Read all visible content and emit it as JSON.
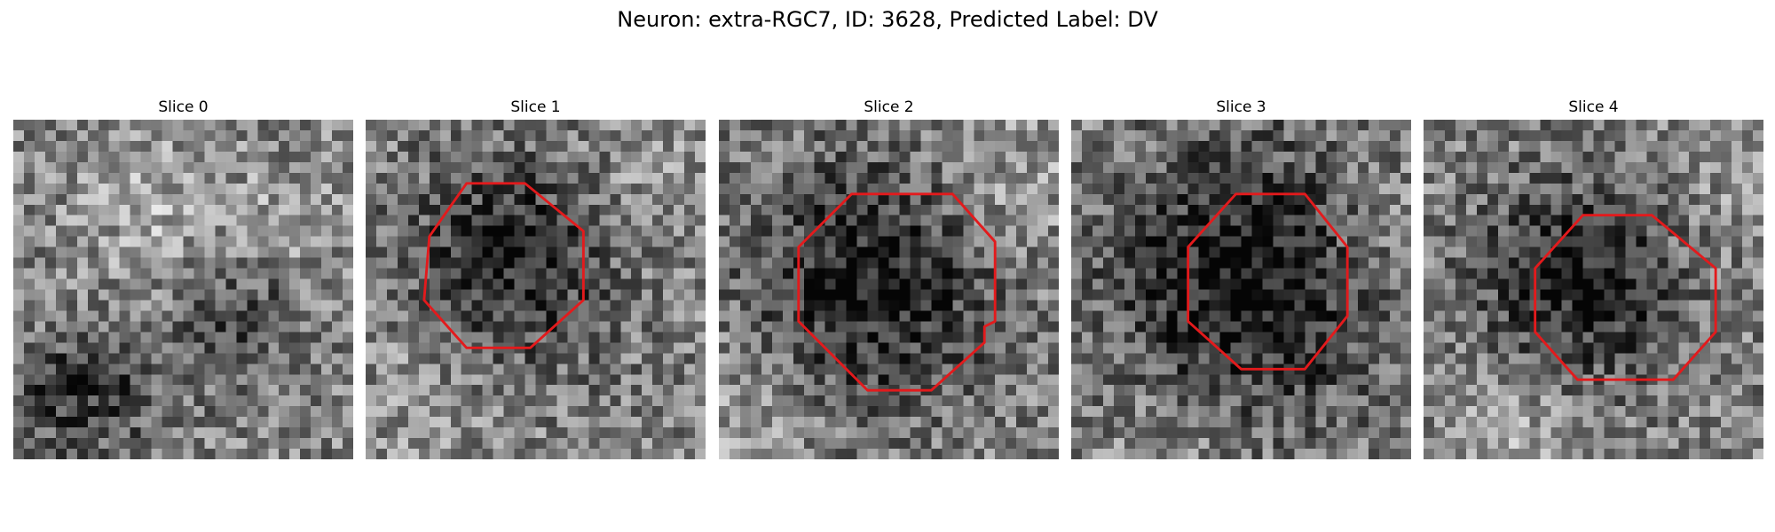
{
  "title": "Neuron: extra-RGC7, ID: 3628, Predicted Label: DV",
  "slices": [
    {
      "label": "Slice 0",
      "roi": false
    },
    {
      "label": "Slice 1",
      "roi": true
    },
    {
      "label": "Slice 2",
      "roi": true
    },
    {
      "label": "Slice 3",
      "roi": true
    },
    {
      "label": "Slice 4",
      "roi": true
    }
  ],
  "colors": {
    "roi_outline": "#e31a1c",
    "colormap": "gray"
  }
}
